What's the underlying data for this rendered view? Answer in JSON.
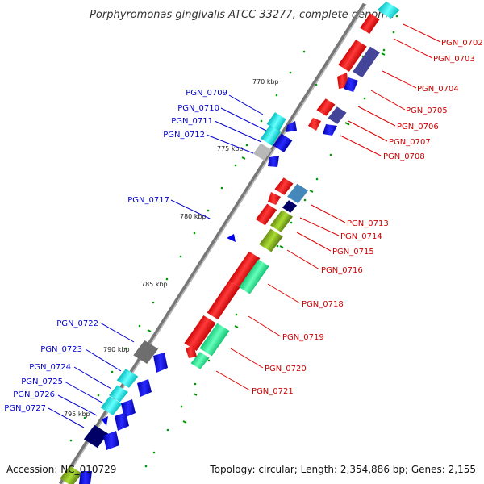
{
  "title": "Porphyromonas gingivalis ATCC 33277, complete genome",
  "footer": {
    "accession": "Accession: NC_010729",
    "topology": "Topology: circular; Length: 2,354,886 bp; Genes: 2,155"
  },
  "colors": {
    "forward": "#ff0000",
    "reverse": "#0000ee",
    "cyan": "#00dddd",
    "navy": "#000066",
    "purple": "#444499",
    "green": "#33ee99",
    "olive": "#88aa22",
    "gray": "#777777",
    "steel": "#4488bb",
    "tick": "#009900",
    "backbone": "#888888"
  },
  "scale": [
    "770 kbp",
    "775 kbp",
    "780 kbp",
    "785 kbp",
    "790 kbp",
    "795 kbp"
  ],
  "genes_left": [
    "PGN_0709",
    "PGN_0710",
    "PGN_0711",
    "PGN_0712",
    "PGN_0717",
    "PGN_0722",
    "PGN_0723",
    "PGN_0724",
    "PGN_0725",
    "PGN_0726",
    "PGN_0727"
  ],
  "genes_right": [
    "PGN_0702",
    "PGN_0703",
    "PGN_0704",
    "PGN_0705",
    "PGN_0706",
    "PGN_0707",
    "PGN_0708",
    "PGN_0713",
    "PGN_0714",
    "PGN_0715",
    "PGN_0716",
    "PGN_0718",
    "PGN_0719",
    "PGN_0720",
    "PGN_0721"
  ]
}
